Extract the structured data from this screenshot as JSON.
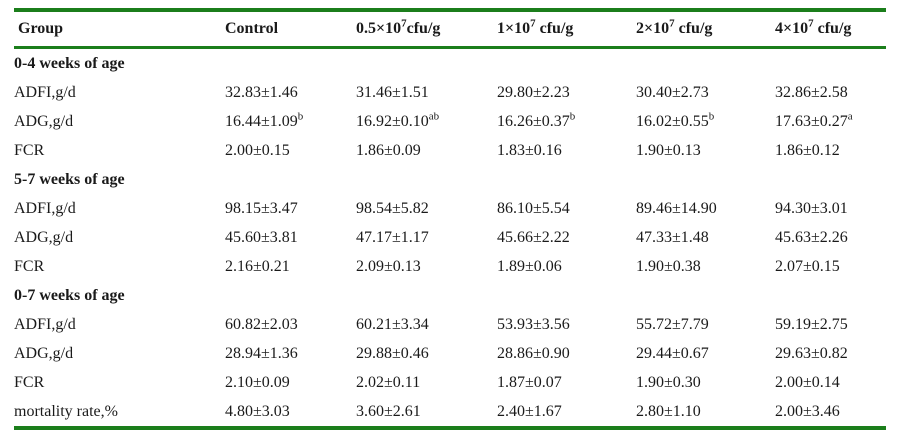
{
  "accent_color": "#1b7e1b",
  "table": {
    "header": [
      {
        "base": "Group",
        "exp": "",
        "unit": ""
      },
      {
        "base": "Control",
        "exp": "",
        "unit": ""
      },
      {
        "base": "0.5×10",
        "exp": "7",
        "unit": "cfu/g"
      },
      {
        "base": "1×10",
        "exp": "7",
        "unit": " cfu/g"
      },
      {
        "base": "2×10",
        "exp": "7",
        "unit": " cfu/g"
      },
      {
        "base": "4×10",
        "exp": "7",
        "unit": " cfu/g"
      }
    ],
    "sections": [
      {
        "title": "0-4 weeks of age",
        "rows": [
          {
            "label": "ADFI,g/d",
            "values": [
              {
                "v": "32.83±1.46",
                "sup": ""
              },
              {
                "v": "31.46±1.51",
                "sup": ""
              },
              {
                "v": "29.80±2.23",
                "sup": ""
              },
              {
                "v": "30.40±2.73",
                "sup": ""
              },
              {
                "v": "32.86±2.58",
                "sup": ""
              }
            ]
          },
          {
            "label": "ADG,g/d",
            "values": [
              {
                "v": "16.44±1.09",
                "sup": "b"
              },
              {
                "v": "16.92±0.10",
                "sup": "ab"
              },
              {
                "v": "16.26±0.37",
                "sup": "b"
              },
              {
                "v": "16.02±0.55",
                "sup": "b"
              },
              {
                "v": "17.63±0.27",
                "sup": "a"
              }
            ]
          },
          {
            "label": "FCR",
            "values": [
              {
                "v": "2.00±0.15",
                "sup": ""
              },
              {
                "v": "1.86±0.09",
                "sup": ""
              },
              {
                "v": "1.83±0.16",
                "sup": ""
              },
              {
                "v": "1.90±0.13",
                "sup": ""
              },
              {
                "v": "1.86±0.12",
                "sup": ""
              }
            ]
          }
        ]
      },
      {
        "title": "5-7 weeks of age",
        "rows": [
          {
            "label": "ADFI,g/d",
            "values": [
              {
                "v": "98.15±3.47",
                "sup": ""
              },
              {
                "v": "98.54±5.82",
                "sup": ""
              },
              {
                "v": "86.10±5.54",
                "sup": ""
              },
              {
                "v": "89.46±14.90",
                "sup": ""
              },
              {
                "v": "94.30±3.01",
                "sup": ""
              }
            ]
          },
          {
            "label": "ADG,g/d",
            "values": [
              {
                "v": "45.60±3.81",
                "sup": ""
              },
              {
                "v": "47.17±1.17",
                "sup": ""
              },
              {
                "v": "45.66±2.22",
                "sup": ""
              },
              {
                "v": "47.33±1.48",
                "sup": ""
              },
              {
                "v": "45.63±2.26",
                "sup": ""
              }
            ]
          },
          {
            "label": "FCR",
            "values": [
              {
                "v": "2.16±0.21",
                "sup": ""
              },
              {
                "v": "2.09±0.13",
                "sup": ""
              },
              {
                "v": "1.89±0.06",
                "sup": ""
              },
              {
                "v": "1.90±0.38",
                "sup": ""
              },
              {
                "v": "2.07±0.15",
                "sup": ""
              }
            ]
          }
        ]
      },
      {
        "title": "0-7 weeks of age",
        "rows": [
          {
            "label": "ADFI,g/d",
            "values": [
              {
                "v": "60.82±2.03",
                "sup": ""
              },
              {
                "v": "60.21±3.34",
                "sup": ""
              },
              {
                "v": "53.93±3.56",
                "sup": ""
              },
              {
                "v": "55.72±7.79",
                "sup": ""
              },
              {
                "v": "59.19±2.75",
                "sup": ""
              }
            ]
          },
          {
            "label": "ADG,g/d",
            "values": [
              {
                "v": "28.94±1.36",
                "sup": ""
              },
              {
                "v": "29.88±0.46",
                "sup": ""
              },
              {
                "v": "28.86±0.90",
                "sup": ""
              },
              {
                "v": "29.44±0.67",
                "sup": ""
              },
              {
                "v": "29.63±0.82",
                "sup": ""
              }
            ]
          },
          {
            "label": "FCR",
            "values": [
              {
                "v": "2.10±0.09",
                "sup": ""
              },
              {
                "v": "2.02±0.11",
                "sup": ""
              },
              {
                "v": "1.87±0.07",
                "sup": ""
              },
              {
                "v": "1.90±0.30",
                "sup": ""
              },
              {
                "v": "2.00±0.14",
                "sup": ""
              }
            ]
          },
          {
            "label": "mortality rate,%",
            "values": [
              {
                "v": "4.80±3.03",
                "sup": ""
              },
              {
                "v": "3.60±2.61",
                "sup": ""
              },
              {
                "v": "2.40±1.67",
                "sup": ""
              },
              {
                "v": "2.80±1.10",
                "sup": ""
              },
              {
                "v": "2.00±3.46",
                "sup": ""
              }
            ]
          }
        ]
      }
    ]
  }
}
